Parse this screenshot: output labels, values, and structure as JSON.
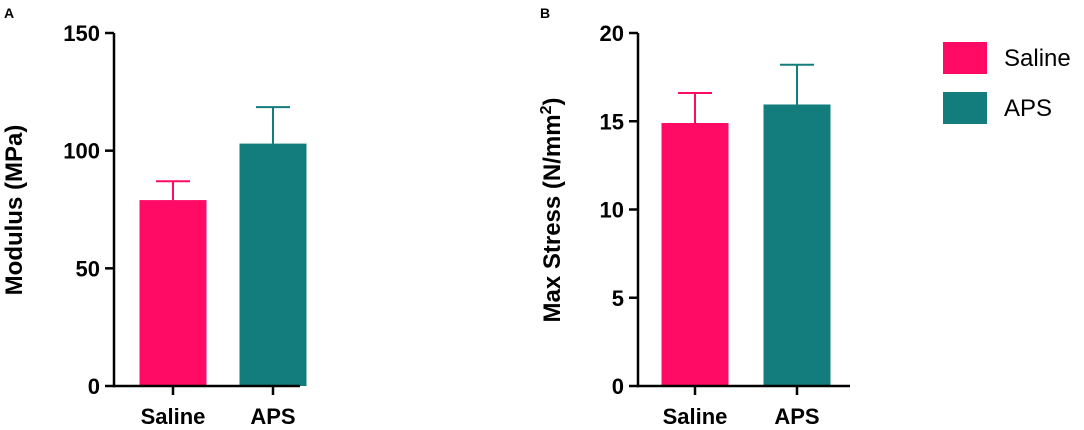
{
  "colors": {
    "saline": "#ff0a64",
    "aps": "#137c7c",
    "axis": "#000000"
  },
  "legend": [
    {
      "name": "Saline",
      "color": "#ff0a64"
    },
    {
      "name": "APS",
      "color": "#137c7c"
    }
  ],
  "chart_data": [
    {
      "type": "bar",
      "panel_label": "A",
      "title": "",
      "ylabel": "Modulus (MPa)",
      "xlabel": "",
      "categories": [
        "Saline",
        "APS"
      ],
      "values": [
        79,
        103
      ],
      "error": [
        8,
        15.5
      ],
      "ylim": [
        0,
        150
      ],
      "yticks": [
        0,
        50,
        100,
        150
      ],
      "grid": false,
      "legend_placement": "right"
    },
    {
      "type": "bar",
      "panel_label": "B",
      "title": "",
      "ylabel": "Max Stress (N/mm²)",
      "xlabel": "",
      "categories": [
        "Saline",
        "APS"
      ],
      "values": [
        14.9,
        15.95
      ],
      "error": [
        1.7,
        2.25
      ],
      "ylim": [
        0,
        20
      ],
      "yticks": [
        0,
        5,
        10,
        15,
        20
      ],
      "grid": false,
      "legend_placement": "right"
    }
  ]
}
